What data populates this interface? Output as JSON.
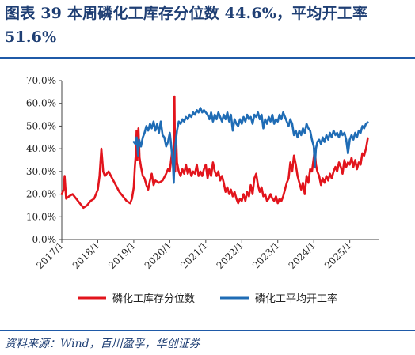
{
  "title": "图表 39   本周磷化工库存分位数 44.6%，平均开工率 51.6%",
  "source": "资料来源：Wind，百川盈孚，华创证券",
  "chart_data": {
    "type": "line",
    "ylim": [
      0,
      70
    ],
    "yticks": [
      "0.0%",
      "10.0%",
      "20.0%",
      "30.0%",
      "40.0%",
      "50.0%",
      "60.0%",
      "70.0%"
    ],
    "xlim": [
      2017.0,
      2025.8
    ],
    "xticks": [
      {
        "label": "2017/1",
        "x": 2017.0
      },
      {
        "label": "2018/1",
        "x": 2018.0
      },
      {
        "label": "2019/1",
        "x": 2019.0
      },
      {
        "label": "2020/1",
        "x": 2020.0
      },
      {
        "label": "2021/1",
        "x": 2021.0
      },
      {
        "label": "2022/1",
        "x": 2022.0
      },
      {
        "label": "2023/1",
        "x": 2023.0
      },
      {
        "label": "2024/1",
        "x": 2024.0
      },
      {
        "label": "2025/1",
        "x": 2025.0
      }
    ],
    "legend_position": "bottom",
    "series": [
      {
        "name": "磷化工库存分位数",
        "color": "#e2141c",
        "points": [
          [
            2017.0,
            20
          ],
          [
            2017.05,
            22
          ],
          [
            2017.08,
            28
          ],
          [
            2017.12,
            18
          ],
          [
            2017.2,
            19
          ],
          [
            2017.3,
            20
          ],
          [
            2017.4,
            18
          ],
          [
            2017.5,
            16
          ],
          [
            2017.6,
            14
          ],
          [
            2017.7,
            15
          ],
          [
            2017.8,
            17
          ],
          [
            2017.9,
            18
          ],
          [
            2018.0,
            22
          ],
          [
            2018.05,
            28
          ],
          [
            2018.1,
            40
          ],
          [
            2018.15,
            30
          ],
          [
            2018.2,
            28
          ],
          [
            2018.3,
            30
          ],
          [
            2018.4,
            27
          ],
          [
            2018.5,
            24
          ],
          [
            2018.6,
            21
          ],
          [
            2018.7,
            19
          ],
          [
            2018.8,
            17
          ],
          [
            2018.9,
            16
          ],
          [
            2018.95,
            18
          ],
          [
            2019.0,
            23
          ],
          [
            2019.03,
            32
          ],
          [
            2019.06,
            38
          ],
          [
            2019.08,
            48
          ],
          [
            2019.1,
            35
          ],
          [
            2019.13,
            49
          ],
          [
            2019.16,
            36
          ],
          [
            2019.2,
            32
          ],
          [
            2019.25,
            28
          ],
          [
            2019.3,
            27
          ],
          [
            2019.35,
            24
          ],
          [
            2019.4,
            22
          ],
          [
            2019.45,
            26
          ],
          [
            2019.5,
            29
          ],
          [
            2019.55,
            24
          ],
          [
            2019.6,
            26
          ],
          [
            2019.7,
            25
          ],
          [
            2019.8,
            26
          ],
          [
            2019.9,
            29
          ],
          [
            2019.95,
            31
          ],
          [
            2020.0,
            30
          ],
          [
            2020.03,
            34
          ],
          [
            2020.06,
            38
          ],
          [
            2020.09,
            35
          ],
          [
            2020.11,
            42
          ],
          [
            2020.13,
            63
          ],
          [
            2020.15,
            30
          ],
          [
            2020.18,
            44
          ],
          [
            2020.2,
            34
          ],
          [
            2020.25,
            30
          ],
          [
            2020.3,
            28
          ],
          [
            2020.35,
            31
          ],
          [
            2020.4,
            29
          ],
          [
            2020.45,
            33
          ],
          [
            2020.5,
            29
          ],
          [
            2020.55,
            31
          ],
          [
            2020.6,
            28
          ],
          [
            2020.65,
            30
          ],
          [
            2020.7,
            29
          ],
          [
            2020.75,
            33
          ],
          [
            2020.8,
            28
          ],
          [
            2020.85,
            30
          ],
          [
            2020.9,
            28
          ],
          [
            2020.95,
            31
          ],
          [
            2021.0,
            33
          ],
          [
            2021.05,
            27
          ],
          [
            2021.1,
            31
          ],
          [
            2021.15,
            28
          ],
          [
            2021.2,
            34
          ],
          [
            2021.25,
            30
          ],
          [
            2021.3,
            28
          ],
          [
            2021.35,
            30
          ],
          [
            2021.4,
            26
          ],
          [
            2021.45,
            28
          ],
          [
            2021.5,
            25
          ],
          [
            2021.55,
            21
          ],
          [
            2021.6,
            23
          ],
          [
            2021.65,
            20
          ],
          [
            2021.7,
            22
          ],
          [
            2021.75,
            19
          ],
          [
            2021.8,
            21
          ],
          [
            2021.85,
            18
          ],
          [
            2021.9,
            16
          ],
          [
            2021.95,
            18
          ],
          [
            2022.0,
            17
          ],
          [
            2022.05,
            20
          ],
          [
            2022.1,
            17
          ],
          [
            2022.15,
            21
          ],
          [
            2022.2,
            19
          ],
          [
            2022.25,
            24
          ],
          [
            2022.3,
            20
          ],
          [
            2022.35,
            27
          ],
          [
            2022.4,
            29
          ],
          [
            2022.45,
            24
          ],
          [
            2022.5,
            21
          ],
          [
            2022.55,
            23
          ],
          [
            2022.6,
            19
          ],
          [
            2022.65,
            20
          ],
          [
            2022.7,
            17
          ],
          [
            2022.75,
            18
          ],
          [
            2022.8,
            20
          ],
          [
            2022.85,
            18
          ],
          [
            2022.9,
            17
          ],
          [
            2022.95,
            19
          ],
          [
            2023.0,
            16
          ],
          [
            2023.05,
            18
          ],
          [
            2023.1,
            17
          ],
          [
            2023.15,
            19
          ],
          [
            2023.2,
            22
          ],
          [
            2023.25,
            25
          ],
          [
            2023.3,
            27
          ],
          [
            2023.35,
            34
          ],
          [
            2023.4,
            30
          ],
          [
            2023.45,
            37
          ],
          [
            2023.5,
            33
          ],
          [
            2023.55,
            28
          ],
          [
            2023.6,
            25
          ],
          [
            2023.65,
            22
          ],
          [
            2023.7,
            25
          ],
          [
            2023.75,
            20
          ],
          [
            2023.8,
            28
          ],
          [
            2023.85,
            25
          ],
          [
            2023.9,
            31
          ],
          [
            2023.95,
            30
          ],
          [
            2024.0,
            36
          ],
          [
            2024.03,
            40
          ],
          [
            2024.06,
            33
          ],
          [
            2024.1,
            30
          ],
          [
            2024.15,
            28
          ],
          [
            2024.2,
            24
          ],
          [
            2024.25,
            27
          ],
          [
            2024.3,
            25
          ],
          [
            2024.35,
            28
          ],
          [
            2024.4,
            26
          ],
          [
            2024.45,
            29
          ],
          [
            2024.5,
            27
          ],
          [
            2024.55,
            30
          ],
          [
            2024.6,
            32
          ],
          [
            2024.65,
            30
          ],
          [
            2024.7,
            34
          ],
          [
            2024.75,
            32
          ],
          [
            2024.8,
            29
          ],
          [
            2024.85,
            35
          ],
          [
            2024.9,
            32
          ],
          [
            2024.95,
            34
          ],
          [
            2025.0,
            33
          ],
          [
            2025.05,
            36
          ],
          [
            2025.1,
            32
          ],
          [
            2025.15,
            35
          ],
          [
            2025.2,
            31
          ],
          [
            2025.25,
            34
          ],
          [
            2025.3,
            33
          ],
          [
            2025.35,
            38
          ],
          [
            2025.4,
            37
          ],
          [
            2025.45,
            40
          ],
          [
            2025.5,
            44.6
          ]
        ]
      },
      {
        "name": "磷化工平均开工率",
        "color": "#1f6cb5",
        "points": [
          [
            2019.0,
            43
          ],
          [
            2019.05,
            42
          ],
          [
            2019.08,
            45
          ],
          [
            2019.12,
            37
          ],
          [
            2019.15,
            44
          ],
          [
            2019.2,
            41
          ],
          [
            2019.25,
            45
          ],
          [
            2019.3,
            47
          ],
          [
            2019.35,
            50
          ],
          [
            2019.4,
            48
          ],
          [
            2019.45,
            51
          ],
          [
            2019.5,
            49
          ],
          [
            2019.55,
            52
          ],
          [
            2019.6,
            48
          ],
          [
            2019.65,
            51
          ],
          [
            2019.7,
            47
          ],
          [
            2019.75,
            52
          ],
          [
            2019.8,
            46
          ],
          [
            2019.85,
            45
          ],
          [
            2019.9,
            41
          ],
          [
            2019.95,
            43
          ],
          [
            2020.0,
            47
          ],
          [
            2020.03,
            43
          ],
          [
            2020.06,
            38
          ],
          [
            2020.09,
            32
          ],
          [
            2020.11,
            25
          ],
          [
            2020.13,
            35
          ],
          [
            2020.16,
            42
          ],
          [
            2020.2,
            48
          ],
          [
            2020.25,
            52
          ],
          [
            2020.3,
            51
          ],
          [
            2020.35,
            53
          ],
          [
            2020.4,
            52
          ],
          [
            2020.45,
            54
          ],
          [
            2020.5,
            53
          ],
          [
            2020.55,
            55
          ],
          [
            2020.6,
            54
          ],
          [
            2020.65,
            56
          ],
          [
            2020.7,
            55
          ],
          [
            2020.75,
            57
          ],
          [
            2020.8,
            56
          ],
          [
            2020.85,
            58
          ],
          [
            2020.9,
            56
          ],
          [
            2020.95,
            57
          ],
          [
            2021.0,
            56
          ],
          [
            2021.05,
            55
          ],
          [
            2021.1,
            53
          ],
          [
            2021.15,
            56
          ],
          [
            2021.2,
            52
          ],
          [
            2021.25,
            55
          ],
          [
            2021.3,
            53
          ],
          [
            2021.35,
            56
          ],
          [
            2021.4,
            54
          ],
          [
            2021.45,
            52
          ],
          [
            2021.5,
            55
          ],
          [
            2021.55,
            53
          ],
          [
            2021.6,
            56
          ],
          [
            2021.65,
            52
          ],
          [
            2021.7,
            55
          ],
          [
            2021.75,
            48
          ],
          [
            2021.8,
            53
          ],
          [
            2021.85,
            51
          ],
          [
            2021.9,
            50
          ],
          [
            2021.95,
            53
          ],
          [
            2022.0,
            51
          ],
          [
            2022.05,
            54
          ],
          [
            2022.1,
            52
          ],
          [
            2022.15,
            55
          ],
          [
            2022.2,
            53
          ],
          [
            2022.25,
            54
          ],
          [
            2022.3,
            51
          ],
          [
            2022.35,
            55
          ],
          [
            2022.4,
            54
          ],
          [
            2022.45,
            56
          ],
          [
            2022.5,
            53
          ],
          [
            2022.55,
            55
          ],
          [
            2022.6,
            49
          ],
          [
            2022.65,
            53
          ],
          [
            2022.7,
            51
          ],
          [
            2022.75,
            54
          ],
          [
            2022.8,
            52
          ],
          [
            2022.85,
            55
          ],
          [
            2022.9,
            51
          ],
          [
            2022.95,
            53
          ],
          [
            2023.0,
            52
          ],
          [
            2023.05,
            55
          ],
          [
            2023.1,
            53
          ],
          [
            2023.15,
            56
          ],
          [
            2023.2,
            54
          ],
          [
            2023.25,
            52
          ],
          [
            2023.3,
            50
          ],
          [
            2023.35,
            53
          ],
          [
            2023.4,
            51
          ],
          [
            2023.45,
            46
          ],
          [
            2023.5,
            48
          ],
          [
            2023.55,
            45
          ],
          [
            2023.6,
            48
          ],
          [
            2023.65,
            46
          ],
          [
            2023.7,
            49
          ],
          [
            2023.75,
            47
          ],
          [
            2023.8,
            51
          ],
          [
            2023.85,
            49
          ],
          [
            2023.9,
            48
          ],
          [
            2023.95,
            44
          ],
          [
            2024.0,
            41
          ],
          [
            2024.03,
            32
          ],
          [
            2024.06,
            40
          ],
          [
            2024.1,
            43
          ],
          [
            2024.15,
            44
          ],
          [
            2024.2,
            42
          ],
          [
            2024.25,
            45
          ],
          [
            2024.3,
            43
          ],
          [
            2024.35,
            46
          ],
          [
            2024.4,
            44
          ],
          [
            2024.45,
            47
          ],
          [
            2024.5,
            45
          ],
          [
            2024.55,
            48
          ],
          [
            2024.6,
            46
          ],
          [
            2024.65,
            47
          ],
          [
            2024.7,
            45
          ],
          [
            2024.75,
            48
          ],
          [
            2024.8,
            46
          ],
          [
            2024.85,
            47
          ],
          [
            2024.9,
            44
          ],
          [
            2024.95,
            38
          ],
          [
            2025.0,
            44
          ],
          [
            2025.05,
            46
          ],
          [
            2025.1,
            44
          ],
          [
            2025.15,
            47
          ],
          [
            2025.2,
            45
          ],
          [
            2025.25,
            48
          ],
          [
            2025.3,
            47
          ],
          [
            2025.35,
            50
          ],
          [
            2025.4,
            49
          ],
          [
            2025.45,
            51
          ],
          [
            2025.5,
            51.6
          ]
        ]
      }
    ]
  }
}
